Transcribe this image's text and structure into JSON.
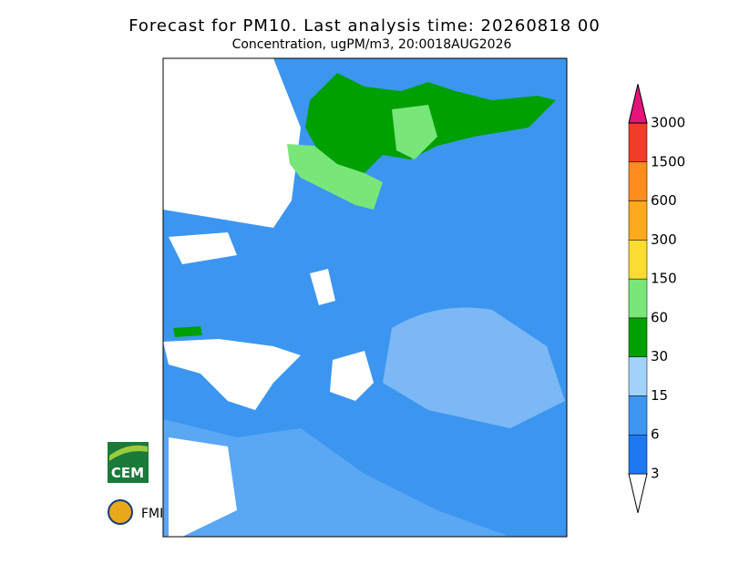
{
  "title": "Forecast for PM10. Last analysis time: 20260818 00",
  "subtitle": "Concentration, ugPM/m3, 20:0018AUG2026",
  "colorbar": {
    "levels": [
      3,
      6,
      15,
      30,
      60,
      150,
      300,
      600,
      1500,
      3000
    ],
    "colors": [
      "#ffffff",
      "#1e78f0",
      "#3c96f0",
      "#a0d2fa",
      "#00a000",
      "#78e678",
      "#fadc32",
      "#ffaa1e",
      "#ff8c1e",
      "#f03c28",
      "#e6147a"
    ]
  },
  "logos": {
    "cem": "CEM",
    "fmi": "FMI"
  }
}
